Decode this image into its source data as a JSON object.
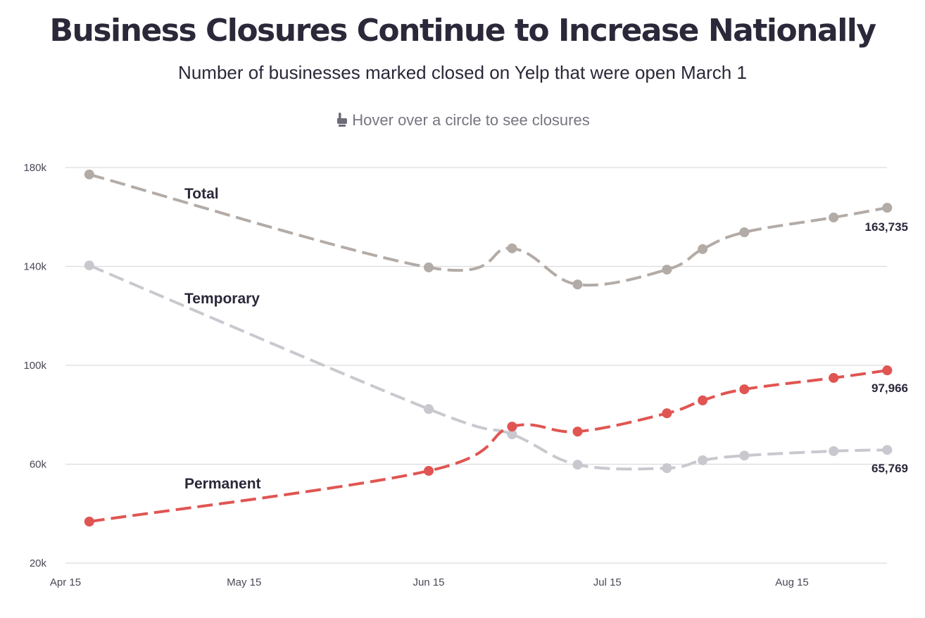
{
  "header": {
    "title": "Business Closures Continue to Increase Nationally",
    "subtitle": "Number of businesses marked closed on Yelp that were open March 1",
    "hint": "Hover over a circle to see closures",
    "hint_icon": "pointing-hand-icon"
  },
  "chart_data": {
    "type": "line",
    "title": "Business Closures Continue to Increase Nationally",
    "subtitle": "Number of businesses marked closed on Yelp that were open March 1",
    "xlabel": "",
    "ylabel": "",
    "x_tick_labels": [
      "Apr 15",
      "May 15",
      "Jun 15",
      "Jul 15",
      "Aug 15"
    ],
    "x_tick_dates": [
      "2020-04-15",
      "2020-05-15",
      "2020-06-15",
      "2020-07-15",
      "2020-08-15"
    ],
    "x_range": [
      "2020-04-15",
      "2020-08-31"
    ],
    "y_tick_labels": [
      "20k",
      "60k",
      "100k",
      "140k",
      "180k"
    ],
    "y_ticks": [
      20000,
      60000,
      100000,
      140000,
      180000
    ],
    "ylim": [
      20000,
      180000
    ],
    "grid": true,
    "legend": "inline-labels",
    "x": [
      "2020-04-19",
      "2020-06-15",
      "2020-06-29",
      "2020-07-10",
      "2020-07-25",
      "2020-07-31",
      "2020-08-07",
      "2020-08-22",
      "2020-08-31"
    ],
    "series": [
      {
        "name": "Total",
        "color": "#b3aba6",
        "values": [
          177200,
          139600,
          147300,
          132700,
          138700,
          147000,
          153800,
          159800,
          163735
        ],
        "end_label": "163,735"
      },
      {
        "name": "Temporary",
        "color": "#c9c8cf",
        "values": [
          140400,
          82300,
          72100,
          59800,
          58400,
          61600,
          63500,
          65300,
          65769
        ],
        "end_label": "65,769"
      },
      {
        "name": "Permanent",
        "color": "#e05552",
        "values": [
          36800,
          57300,
          75200,
          73200,
          80600,
          85800,
          90300,
          94900,
          97966
        ],
        "end_label": "97,966"
      }
    ]
  }
}
